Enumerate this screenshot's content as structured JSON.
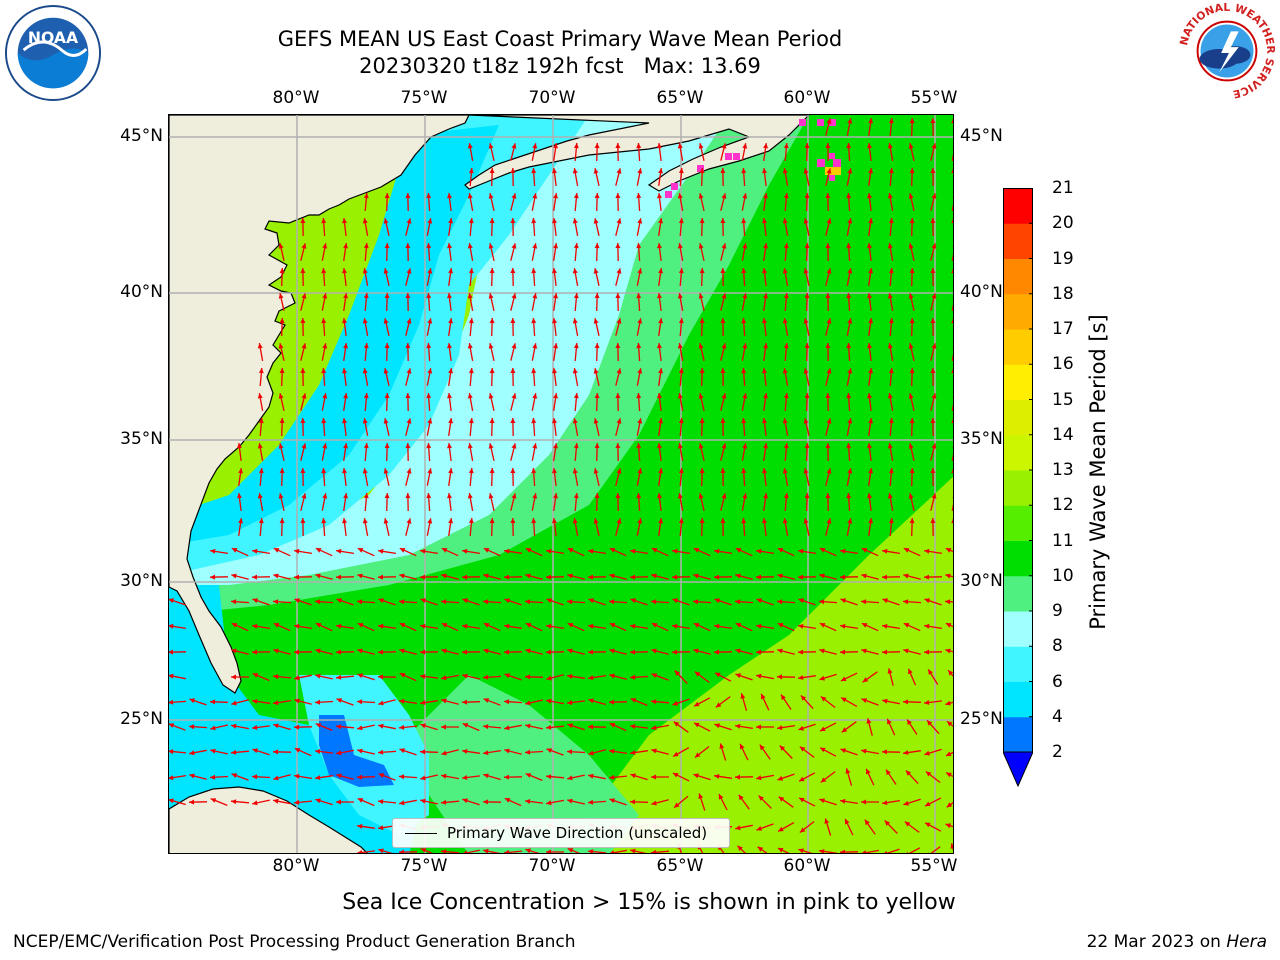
{
  "title_line1": "GEFS MEAN US East Coast Primary Wave Mean Period",
  "title_line2": "20230320 t18z 192h fcst   Max: 13.69",
  "longitude_labels": [
    "80°W",
    "75°W",
    "70°W",
    "65°W",
    "60°W",
    "55°W"
  ],
  "latitude_labels": [
    "45°N",
    "40°N",
    "35°N",
    "30°N",
    "25°N"
  ],
  "legend_label": "Primary Wave Direction (unscaled)",
  "colorbar": {
    "title": "Primary Wave Mean Period [s]",
    "ticks": [
      "2",
      "4",
      "6",
      "8",
      "9",
      "10",
      "11",
      "12",
      "13",
      "14",
      "15",
      "16",
      "17",
      "18",
      "19",
      "20",
      "21"
    ],
    "colors": [
      "#0000ff",
      "#0077ff",
      "#00e5ff",
      "#40f5ff",
      "#a0ffff",
      "#50f080",
      "#00dd00",
      "#55ee00",
      "#99f000",
      "#ccf500",
      "#ddee00",
      "#ffee00",
      "#ffcc00",
      "#ffaa00",
      "#ff8800",
      "#ff4400",
      "#ff0000"
    ]
  },
  "subtitle": "Sea Ice Concentration > 15% is shown in pink to yellow",
  "footer_left": "NCEP/EMC/Verification Post Processing Product Generation Branch",
  "footer_date": "22 Mar 2023 on",
  "footer_host": "Hera",
  "logos": {
    "noaa_text": "NOAA",
    "nws_ring_text": "NATIONAL WEATHER SERVICE"
  },
  "colors": {
    "land": "#efeddc",
    "arrow": "#ee0000",
    "grid": "#b0b0b0",
    "sea_ice": "#ff33cc"
  }
}
